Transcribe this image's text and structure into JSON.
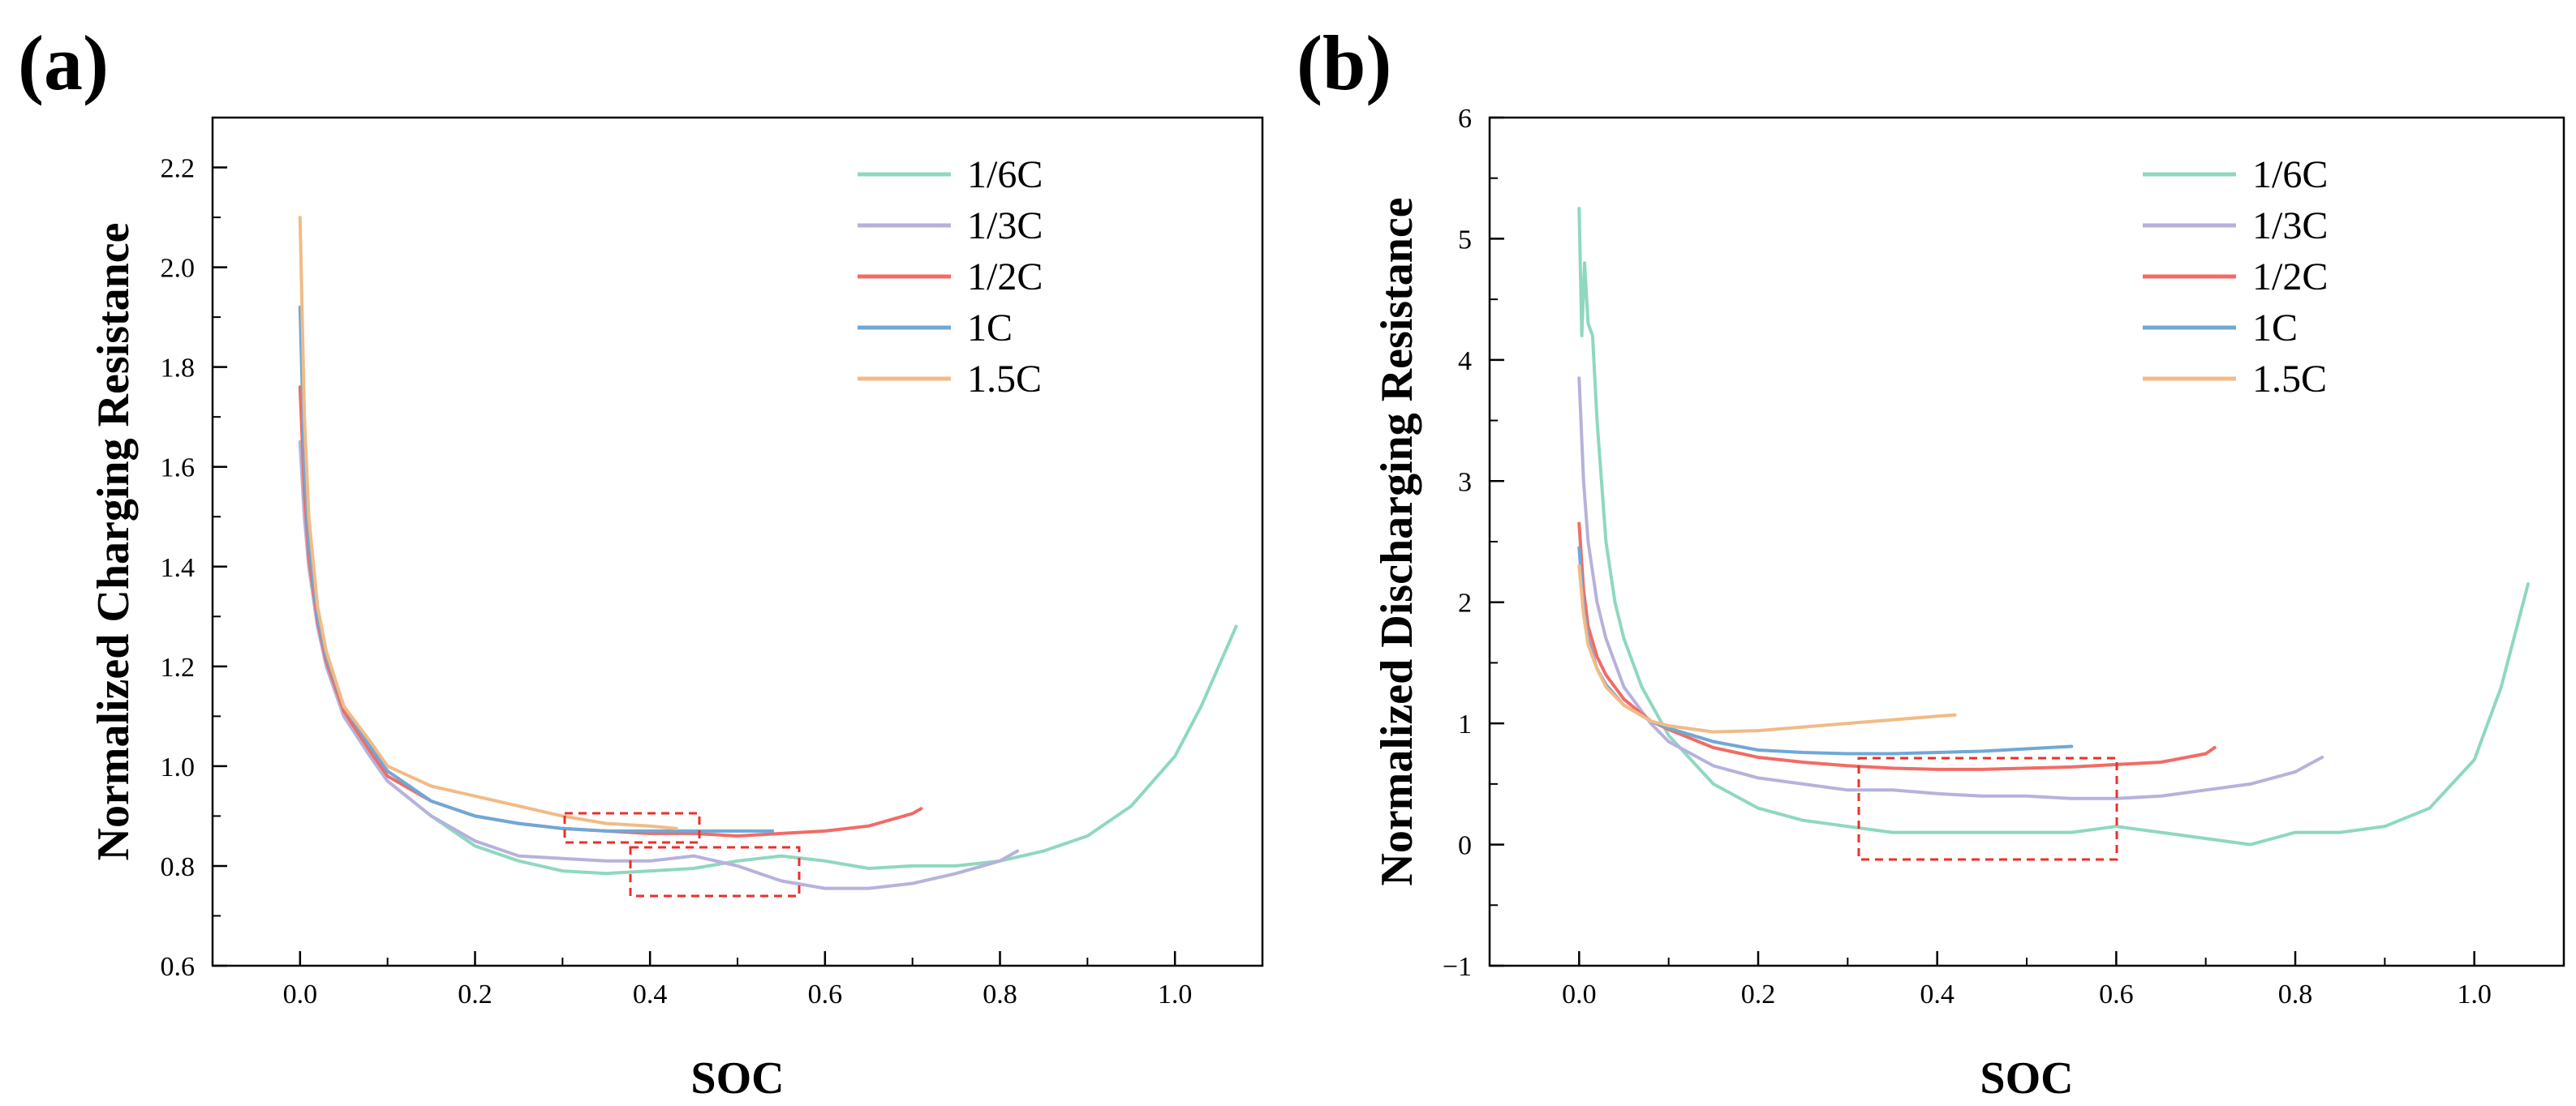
{
  "chart_data": [
    {
      "type": "line",
      "panel_label": "(a)",
      "xlabel": "SOC",
      "ylabel": "Normalized Charging Resistance",
      "xlim": [
        -0.1,
        1.1
      ],
      "ylim": [
        0.6,
        2.3
      ],
      "xticks": [
        0.0,
        0.2,
        0.4,
        0.6,
        0.8,
        1.0
      ],
      "xtick_labels": [
        "0.0",
        "0.2",
        "0.4",
        "0.6",
        "0.8",
        "1.0"
      ],
      "yticks": [
        0.6,
        0.8,
        1.0,
        1.2,
        1.4,
        1.6,
        1.8,
        2.0,
        2.2
      ],
      "ytick_labels": [
        "0.6",
        "0.8",
        "1.0",
        "1.2",
        "1.4",
        "1.6",
        "1.8",
        "2.0",
        "2.2"
      ],
      "legend": "top-right",
      "grid": false,
      "series": [
        {
          "name": "1/6C",
          "color": "#8ed8c0",
          "x": [
            0.0,
            0.005,
            0.01,
            0.02,
            0.03,
            0.05,
            0.08,
            0.1,
            0.15,
            0.2,
            0.25,
            0.3,
            0.35,
            0.4,
            0.45,
            0.5,
            0.55,
            0.6,
            0.65,
            0.7,
            0.75,
            0.8,
            0.85,
            0.9,
            0.95,
            1.0,
            1.03,
            1.05,
            1.07
          ],
          "values": [
            1.65,
            1.5,
            1.4,
            1.28,
            1.2,
            1.1,
            1.02,
            0.97,
            0.9,
            0.84,
            0.81,
            0.79,
            0.785,
            0.79,
            0.795,
            0.81,
            0.82,
            0.81,
            0.795,
            0.8,
            0.8,
            0.81,
            0.83,
            0.86,
            0.92,
            1.02,
            1.12,
            1.2,
            1.28
          ]
        },
        {
          "name": "1/3C",
          "color": "#b6b2dc",
          "x": [
            0.0,
            0.005,
            0.01,
            0.02,
            0.03,
            0.05,
            0.08,
            0.1,
            0.15,
            0.2,
            0.25,
            0.3,
            0.35,
            0.4,
            0.45,
            0.5,
            0.55,
            0.6,
            0.65,
            0.7,
            0.75,
            0.8,
            0.82
          ],
          "values": [
            1.65,
            1.5,
            1.4,
            1.28,
            1.2,
            1.1,
            1.02,
            0.97,
            0.9,
            0.85,
            0.82,
            0.815,
            0.81,
            0.81,
            0.82,
            0.8,
            0.77,
            0.755,
            0.755,
            0.765,
            0.785,
            0.81,
            0.83
          ]
        },
        {
          "name": "1/2C",
          "color": "#f26b66",
          "x": [
            0.0,
            0.005,
            0.01,
            0.02,
            0.03,
            0.05,
            0.08,
            0.1,
            0.15,
            0.2,
            0.25,
            0.3,
            0.35,
            0.4,
            0.45,
            0.5,
            0.55,
            0.6,
            0.65,
            0.7,
            0.71
          ],
          "values": [
            1.76,
            1.55,
            1.42,
            1.29,
            1.21,
            1.11,
            1.03,
            0.98,
            0.93,
            0.9,
            0.885,
            0.875,
            0.87,
            0.865,
            0.865,
            0.86,
            0.865,
            0.87,
            0.88,
            0.905,
            0.915
          ]
        },
        {
          "name": "1C",
          "color": "#6fa8d6",
          "x": [
            0.0,
            0.005,
            0.01,
            0.02,
            0.03,
            0.05,
            0.08,
            0.1,
            0.15,
            0.2,
            0.25,
            0.3,
            0.35,
            0.4,
            0.45,
            0.5,
            0.54
          ],
          "values": [
            1.92,
            1.6,
            1.45,
            1.3,
            1.22,
            1.12,
            1.04,
            0.99,
            0.93,
            0.9,
            0.885,
            0.875,
            0.87,
            0.87,
            0.87,
            0.87,
            0.87
          ]
        },
        {
          "name": "1.5C",
          "color": "#f1bb86",
          "x": [
            0.0,
            0.005,
            0.01,
            0.02,
            0.03,
            0.05,
            0.08,
            0.1,
            0.15,
            0.2,
            0.25,
            0.3,
            0.35,
            0.4,
            0.43
          ],
          "values": [
            2.1,
            1.7,
            1.5,
            1.32,
            1.23,
            1.12,
            1.05,
            1.0,
            0.96,
            0.94,
            0.92,
            0.9,
            0.885,
            0.88,
            0.875
          ]
        }
      ]
    },
    {
      "type": "line",
      "panel_label": "(b)",
      "xlabel": "SOC",
      "ylabel": "Normalized Discharging Resistance",
      "xlim": [
        -0.1,
        1.1
      ],
      "ylim": [
        -1,
        6
      ],
      "xticks": [
        0.0,
        0.2,
        0.4,
        0.6,
        0.8,
        1.0
      ],
      "xtick_labels": [
        "0.0",
        "0.2",
        "0.4",
        "0.6",
        "0.8",
        "1.0"
      ],
      "yticks": [
        -1,
        0,
        1,
        2,
        3,
        4,
        5,
        6
      ],
      "ytick_labels": [
        "−1",
        "0",
        "1",
        "2",
        "3",
        "4",
        "5",
        "6"
      ],
      "legend": "top-right",
      "grid": false,
      "series": [
        {
          "name": "1/6C",
          "color": "#8ed8c0",
          "x": [
            0.0,
            0.003,
            0.006,
            0.01,
            0.015,
            0.02,
            0.03,
            0.04,
            0.05,
            0.07,
            0.1,
            0.15,
            0.2,
            0.25,
            0.3,
            0.35,
            0.4,
            0.45,
            0.5,
            0.55,
            0.6,
            0.65,
            0.7,
            0.75,
            0.8,
            0.85,
            0.9,
            0.95,
            1.0,
            1.03,
            1.06
          ],
          "values": [
            5.25,
            4.2,
            4.8,
            4.3,
            4.2,
            3.5,
            2.5,
            2.0,
            1.7,
            1.3,
            0.9,
            0.5,
            0.3,
            0.2,
            0.15,
            0.1,
            0.1,
            0.1,
            0.1,
            0.1,
            0.15,
            0.1,
            0.05,
            0.0,
            0.1,
            0.1,
            0.15,
            0.3,
            0.7,
            1.3,
            2.15
          ]
        },
        {
          "name": "1/3C",
          "color": "#b6b2dc",
          "x": [
            0.0,
            0.005,
            0.01,
            0.02,
            0.03,
            0.05,
            0.08,
            0.1,
            0.15,
            0.2,
            0.25,
            0.3,
            0.35,
            0.4,
            0.45,
            0.5,
            0.55,
            0.6,
            0.65,
            0.7,
            0.75,
            0.8,
            0.83
          ],
          "values": [
            3.85,
            3.0,
            2.5,
            2.0,
            1.7,
            1.3,
            1.0,
            0.85,
            0.65,
            0.55,
            0.5,
            0.45,
            0.45,
            0.42,
            0.4,
            0.4,
            0.38,
            0.38,
            0.4,
            0.45,
            0.5,
            0.6,
            0.72
          ]
        },
        {
          "name": "1/2C",
          "color": "#f26b66",
          "x": [
            0.0,
            0.005,
            0.01,
            0.02,
            0.03,
            0.05,
            0.08,
            0.1,
            0.15,
            0.2,
            0.25,
            0.3,
            0.35,
            0.4,
            0.45,
            0.5,
            0.55,
            0.6,
            0.65,
            0.7,
            0.71
          ],
          "values": [
            2.65,
            2.1,
            1.8,
            1.55,
            1.4,
            1.2,
            1.02,
            0.95,
            0.8,
            0.72,
            0.68,
            0.65,
            0.63,
            0.62,
            0.62,
            0.63,
            0.64,
            0.66,
            0.68,
            0.75,
            0.8
          ]
        },
        {
          "name": "1C",
          "color": "#6fa8d6",
          "x": [
            0.0,
            0.005,
            0.01,
            0.02,
            0.03,
            0.05,
            0.08,
            0.1,
            0.15,
            0.2,
            0.25,
            0.3,
            0.35,
            0.4,
            0.45,
            0.5,
            0.55
          ],
          "values": [
            2.45,
            1.95,
            1.7,
            1.45,
            1.32,
            1.15,
            1.02,
            0.96,
            0.85,
            0.78,
            0.76,
            0.75,
            0.75,
            0.76,
            0.77,
            0.79,
            0.81
          ]
        },
        {
          "name": "1.5C",
          "color": "#f1bb86",
          "x": [
            0.0,
            0.005,
            0.01,
            0.02,
            0.03,
            0.05,
            0.08,
            0.1,
            0.15,
            0.2,
            0.25,
            0.3,
            0.35,
            0.4,
            0.42
          ],
          "values": [
            2.3,
            1.9,
            1.65,
            1.45,
            1.3,
            1.15,
            1.02,
            0.98,
            0.93,
            0.94,
            0.97,
            1.0,
            1.03,
            1.06,
            1.07
          ]
        }
      ]
    }
  ]
}
